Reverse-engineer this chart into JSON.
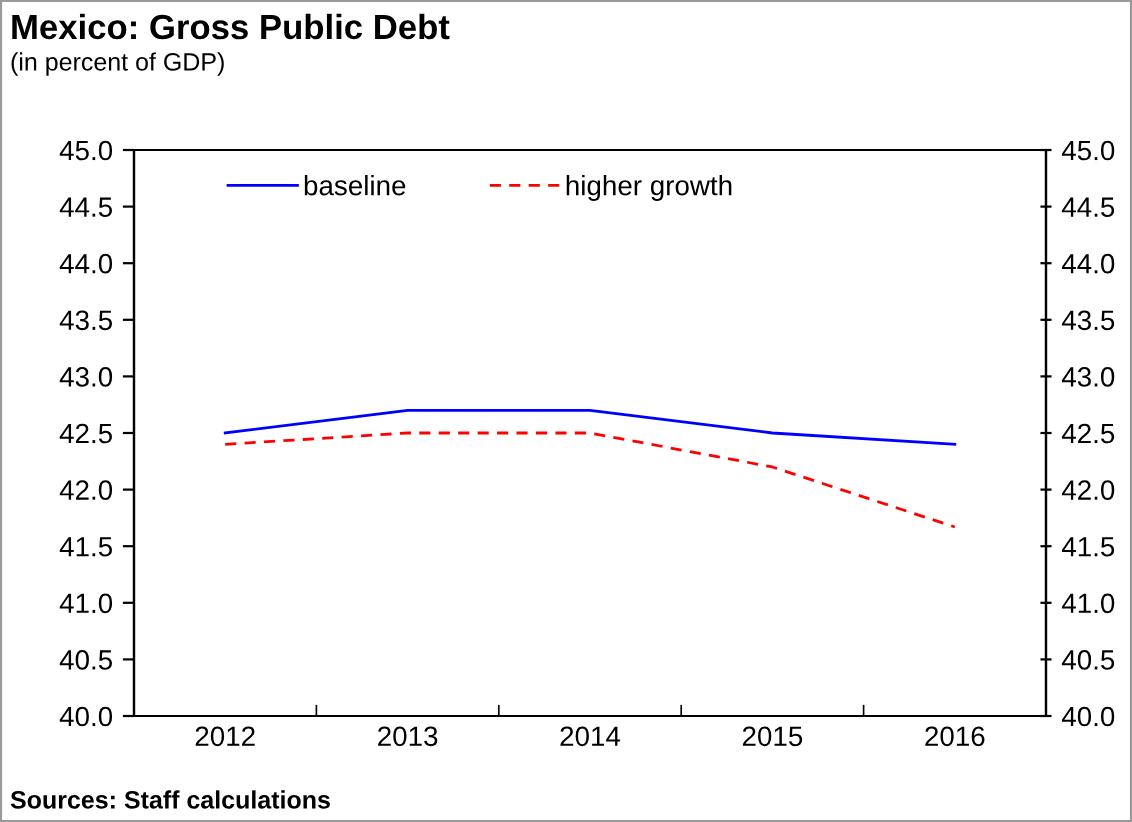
{
  "chart_data": {
    "type": "line",
    "title": "Mexico: Gross Public Debt",
    "subtitle": "(in percent of GDP)",
    "categories": [
      "2012",
      "2013",
      "2014",
      "2015",
      "2016"
    ],
    "series": [
      {
        "name": "baseline",
        "color": "#0000ff",
        "line_style": "solid",
        "values": [
          42.5,
          42.7,
          42.7,
          42.5,
          42.4
        ]
      },
      {
        "name": "higher growth",
        "color": "#ff0000",
        "line_style": "dashed",
        "values": [
          42.4,
          42.5,
          42.5,
          42.2,
          41.67
        ]
      }
    ],
    "ylim": [
      40.0,
      45.0
    ],
    "yticks": [
      {
        "value": 40,
        "label": "40.0"
      },
      {
        "value": 40.5,
        "label": "40.5"
      },
      {
        "value": 41,
        "label": "41.0"
      },
      {
        "value": 41.5,
        "label": "41.5"
      },
      {
        "value": 42,
        "label": "42.0"
      },
      {
        "value": 42.5,
        "label": "42.5"
      },
      {
        "value": 43,
        "label": "43.0"
      },
      {
        "value": 43.5,
        "label": "43.5"
      },
      {
        "value": 44,
        "label": "44.0"
      },
      {
        "value": 44.5,
        "label": "44.5"
      },
      {
        "value": 45,
        "label": "45.0"
      }
    ],
    "y2lim": [
      40.0,
      45.0
    ],
    "y2ticks": [
      {
        "value": 40,
        "label": "40.0"
      },
      {
        "value": 40.5,
        "label": "40.5"
      },
      {
        "value": 41,
        "label": "41.0"
      },
      {
        "value": 41.5,
        "label": "41.5"
      },
      {
        "value": 42,
        "label": "42.0"
      },
      {
        "value": 42.5,
        "label": "42.5"
      },
      {
        "value": 43,
        "label": "43.0"
      },
      {
        "value": 43.5,
        "label": "43.5"
      },
      {
        "value": 44,
        "label": "44.0"
      },
      {
        "value": 44.5,
        "label": "44.5"
      },
      {
        "value": 45,
        "label": "45.0"
      }
    ],
    "grid": false,
    "legend": "top",
    "marker": "none",
    "annotations": [
      "Sources: Staff calculations"
    ]
  }
}
